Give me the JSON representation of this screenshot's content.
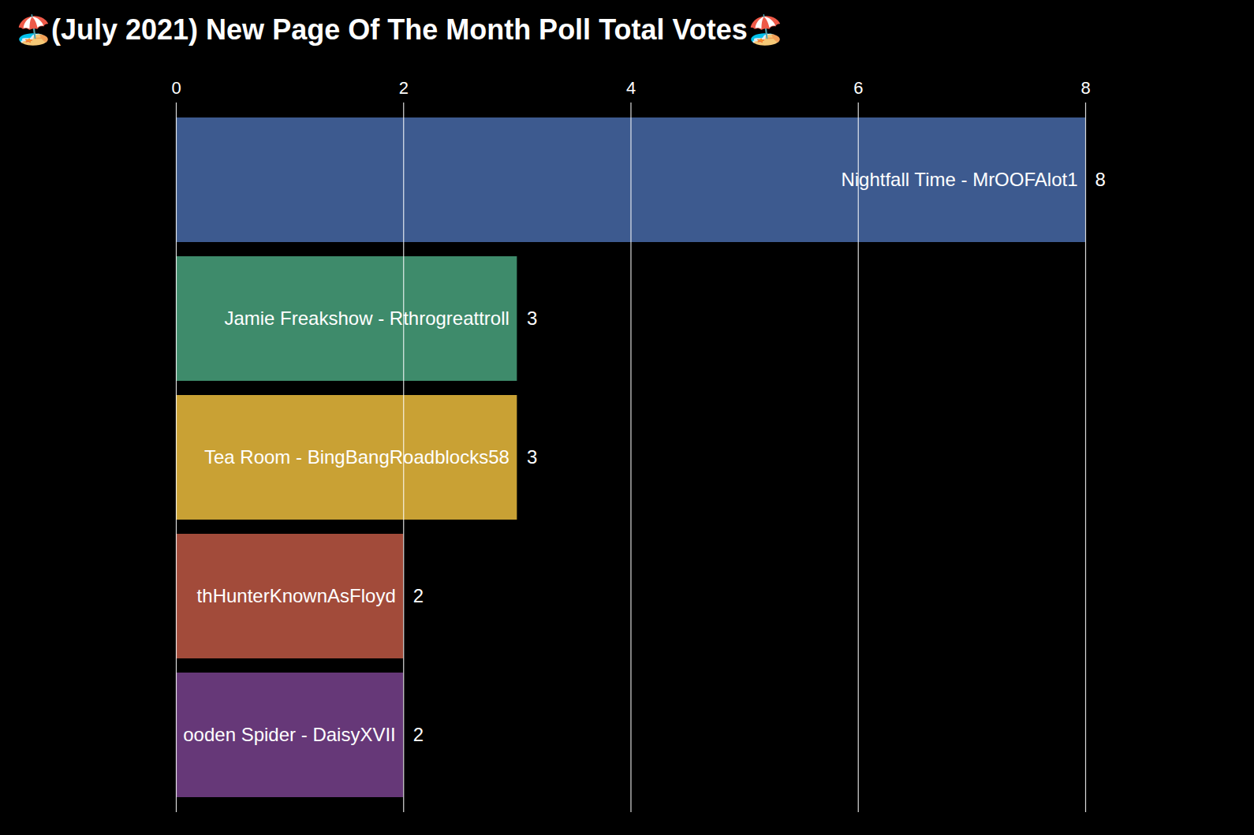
{
  "chart_data": {
    "type": "bar",
    "title": "🏖️(July 2021) New Page Of The Month Poll Total Votes🏖️",
    "orientation": "horizontal",
    "categories": [
      "Nightfall Time - MrOOFAlot1",
      "Jamie Freakshow - Rthrogreattroll",
      "Tea Room - BingBangRoadblocks58",
      "thHunterKnownAsFloyd",
      "ooden Spider - DaisyXVII"
    ],
    "values": [
      8,
      3,
      3,
      2,
      2
    ],
    "colors": [
      "#3d5a8f",
      "#3e8b6b",
      "#c9a134",
      "#a24b3a",
      "#663878"
    ],
    "xlim": [
      0,
      8
    ],
    "xticks": [
      0,
      2,
      4,
      6,
      8
    ],
    "grid": true,
    "data_labels": true
  }
}
